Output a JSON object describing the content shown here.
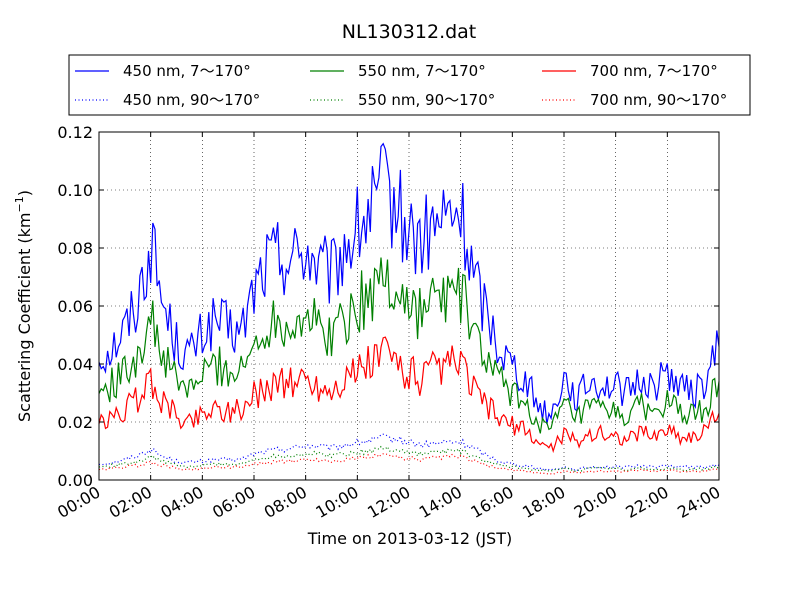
{
  "chart_data": {
    "type": "line",
    "title": "NL130312.dat",
    "xlabel": "Time on 2013-03-12 (JST)",
    "ylabel": "Scattering Coefficient (km",
    "ylabel_sup": "−1",
    "ylabel_close": ")",
    "xlim": [
      "00:00",
      "24:00"
    ],
    "ylim": [
      0,
      0.12
    ],
    "grid": true,
    "grid_style": "dotted",
    "legend_position": "top",
    "x_tick_labels": [
      "00:00",
      "02:00",
      "04:00",
      "06:00",
      "08:00",
      "10:00",
      "12:00",
      "14:00",
      "16:00",
      "18:00",
      "20:00",
      "22:00",
      "24:00"
    ],
    "y_tick_labels": [
      "0.00",
      "0.02",
      "0.04",
      "0.06",
      "0.08",
      "0.10",
      "0.12"
    ],
    "y_ticks": [
      0,
      0.02,
      0.04,
      0.06,
      0.08,
      0.1,
      0.12
    ],
    "x": [
      "00:00",
      "00:30",
      "01:00",
      "01:30",
      "02:00",
      "02:30",
      "03:00",
      "03:30",
      "04:00",
      "04:30",
      "05:00",
      "05:30",
      "06:00",
      "06:30",
      "07:00",
      "07:30",
      "08:00",
      "08:30",
      "09:00",
      "09:30",
      "10:00",
      "10:30",
      "11:00",
      "11:30",
      "12:00",
      "12:30",
      "13:00",
      "13:30",
      "14:00",
      "14:30",
      "15:00",
      "15:30",
      "16:00",
      "16:30",
      "17:00",
      "17:30",
      "18:00",
      "18:30",
      "19:00",
      "19:30",
      "20:00",
      "20:30",
      "21:00",
      "21:30",
      "22:00",
      "22:30",
      "23:00",
      "23:30",
      "24:00"
    ],
    "series": [
      {
        "name": "450 nm, 7～170°",
        "color": "#0000ff",
        "style": "solid",
        "values": [
          0.042,
          0.046,
          0.052,
          0.062,
          0.082,
          0.06,
          0.047,
          0.043,
          0.05,
          0.055,
          0.052,
          0.05,
          0.066,
          0.075,
          0.078,
          0.076,
          0.08,
          0.073,
          0.07,
          0.08,
          0.086,
          0.092,
          0.1,
          0.094,
          0.085,
          0.082,
          0.087,
          0.09,
          0.092,
          0.07,
          0.058,
          0.046,
          0.04,
          0.035,
          0.026,
          0.022,
          0.036,
          0.028,
          0.034,
          0.033,
          0.032,
          0.03,
          0.035,
          0.032,
          0.038,
          0.032,
          0.03,
          0.034,
          0.046
        ]
      },
      {
        "name": "450 nm, 90～170°",
        "color": "#0000ff",
        "style": "dotted",
        "values": [
          0.0055,
          0.006,
          0.007,
          0.0085,
          0.0105,
          0.008,
          0.0065,
          0.006,
          0.0065,
          0.007,
          0.007,
          0.007,
          0.009,
          0.01,
          0.0105,
          0.011,
          0.012,
          0.0115,
          0.011,
          0.012,
          0.013,
          0.0135,
          0.0145,
          0.014,
          0.013,
          0.012,
          0.0125,
          0.013,
          0.013,
          0.011,
          0.0085,
          0.0065,
          0.0055,
          0.005,
          0.004,
          0.0035,
          0.0045,
          0.0035,
          0.0045,
          0.0045,
          0.0045,
          0.0045,
          0.005,
          0.0045,
          0.005,
          0.0045,
          0.0045,
          0.0045,
          0.005
        ]
      },
      {
        "name": "550 nm, 7～170°",
        "color": "#008000",
        "style": "solid",
        "values": [
          0.03,
          0.033,
          0.037,
          0.044,
          0.055,
          0.042,
          0.034,
          0.031,
          0.036,
          0.04,
          0.038,
          0.037,
          0.046,
          0.054,
          0.056,
          0.054,
          0.058,
          0.052,
          0.05,
          0.056,
          0.06,
          0.064,
          0.07,
          0.066,
          0.06,
          0.058,
          0.062,
          0.064,
          0.065,
          0.05,
          0.042,
          0.034,
          0.03,
          0.026,
          0.02,
          0.017,
          0.026,
          0.021,
          0.025,
          0.024,
          0.023,
          0.022,
          0.026,
          0.023,
          0.027,
          0.023,
          0.022,
          0.025,
          0.034
        ]
      },
      {
        "name": "550 nm, 90～170°",
        "color": "#008000",
        "style": "dotted",
        "values": [
          0.0045,
          0.005,
          0.0055,
          0.0065,
          0.008,
          0.0065,
          0.005,
          0.0045,
          0.005,
          0.0055,
          0.0055,
          0.0055,
          0.007,
          0.008,
          0.0085,
          0.0085,
          0.009,
          0.009,
          0.0085,
          0.009,
          0.0095,
          0.01,
          0.011,
          0.0105,
          0.0095,
          0.009,
          0.0095,
          0.01,
          0.01,
          0.008,
          0.0065,
          0.005,
          0.0045,
          0.004,
          0.0035,
          0.003,
          0.004,
          0.003,
          0.004,
          0.004,
          0.004,
          0.0035,
          0.004,
          0.0035,
          0.004,
          0.0035,
          0.0035,
          0.004,
          0.0045
        ]
      },
      {
        "name": "700 nm, 7～170°",
        "color": "#ff0000",
        "style": "solid",
        "values": [
          0.019,
          0.021,
          0.024,
          0.028,
          0.034,
          0.027,
          0.022,
          0.02,
          0.023,
          0.025,
          0.024,
          0.024,
          0.029,
          0.032,
          0.034,
          0.033,
          0.035,
          0.032,
          0.031,
          0.035,
          0.037,
          0.04,
          0.044,
          0.041,
          0.037,
          0.035,
          0.038,
          0.039,
          0.04,
          0.031,
          0.026,
          0.021,
          0.019,
          0.017,
          0.013,
          0.011,
          0.016,
          0.013,
          0.016,
          0.016,
          0.015,
          0.014,
          0.017,
          0.015,
          0.018,
          0.015,
          0.015,
          0.017,
          0.023
        ]
      },
      {
        "name": "700 nm, 90～170°",
        "color": "#ff0000",
        "style": "dotted",
        "values": [
          0.0035,
          0.004,
          0.0045,
          0.005,
          0.006,
          0.005,
          0.004,
          0.0035,
          0.004,
          0.0045,
          0.0045,
          0.0045,
          0.0055,
          0.006,
          0.0065,
          0.0065,
          0.007,
          0.007,
          0.0065,
          0.007,
          0.0075,
          0.008,
          0.0085,
          0.008,
          0.0075,
          0.007,
          0.0075,
          0.008,
          0.008,
          0.0065,
          0.005,
          0.004,
          0.0035,
          0.003,
          0.0025,
          0.002,
          0.003,
          0.0025,
          0.003,
          0.003,
          0.003,
          0.003,
          0.0035,
          0.003,
          0.0035,
          0.003,
          0.003,
          0.003,
          0.004
        ]
      }
    ]
  }
}
